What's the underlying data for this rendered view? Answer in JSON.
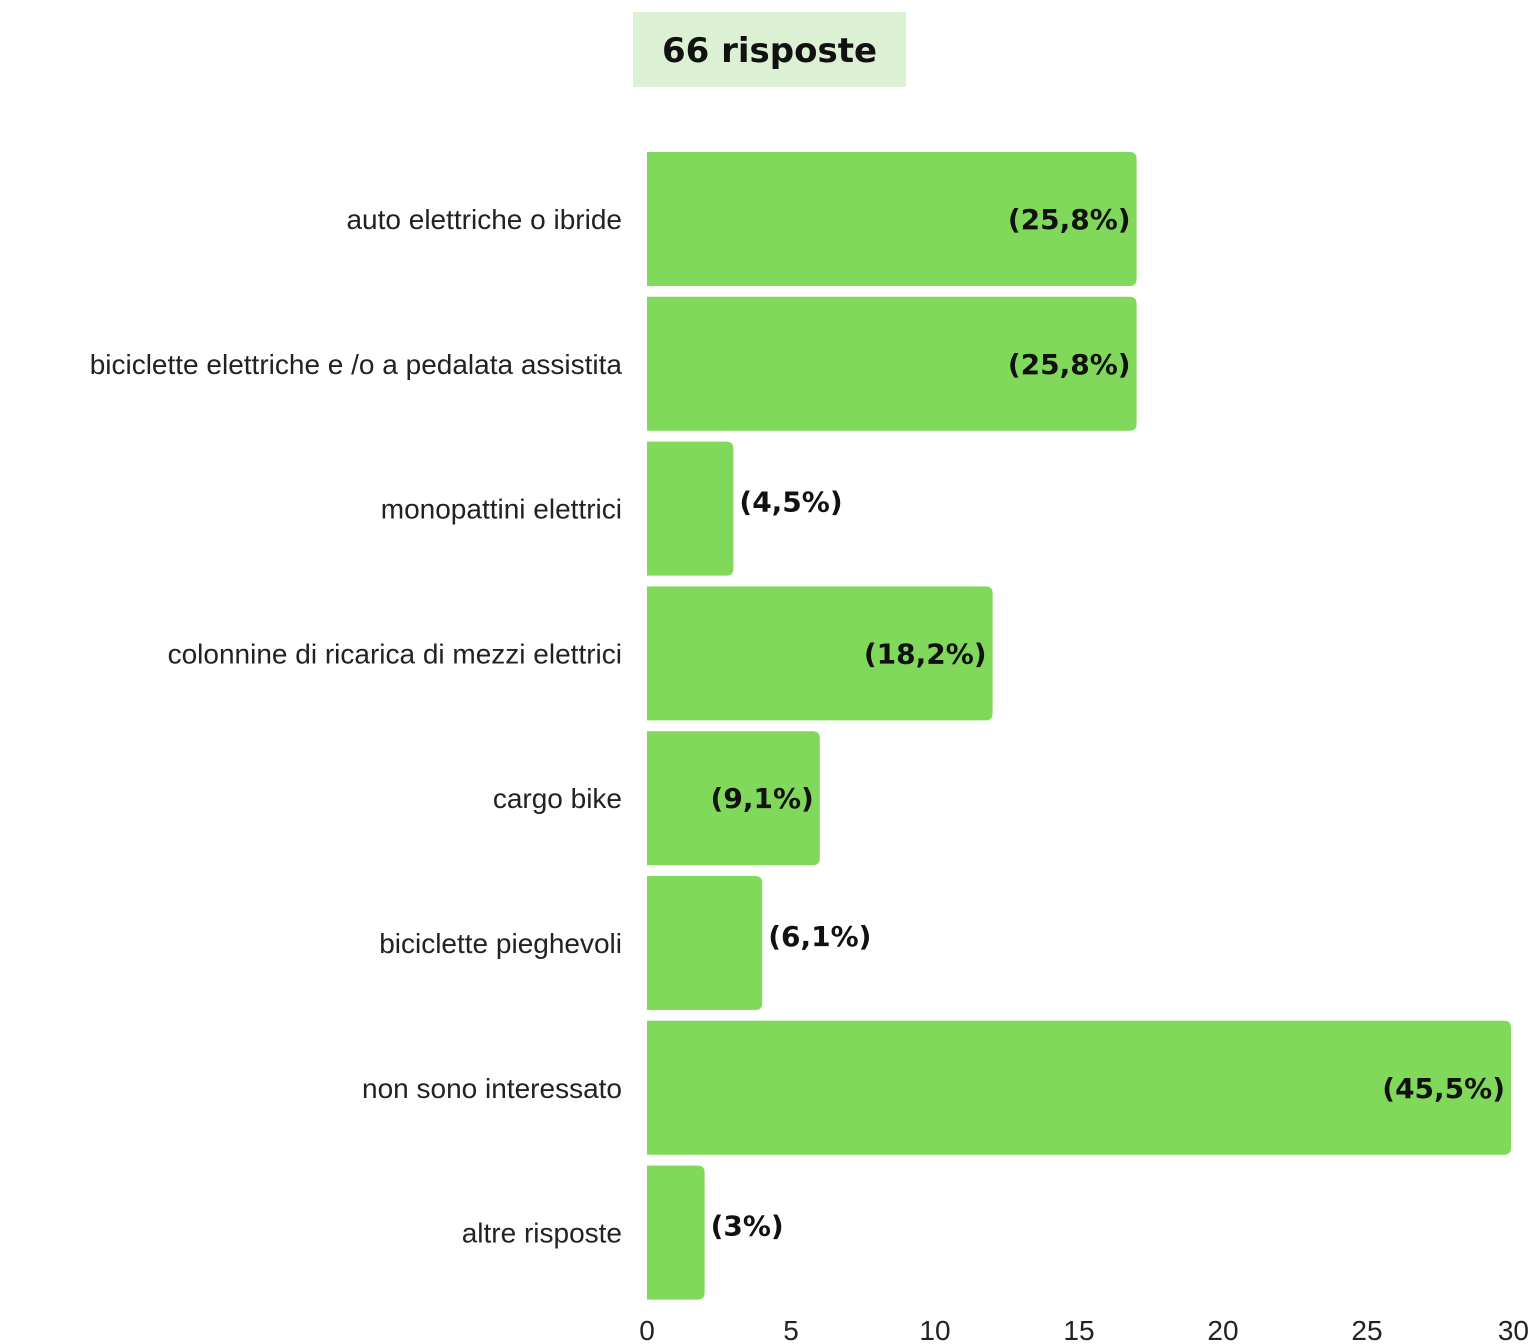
{
  "chart_data": {
    "type": "bar",
    "orientation": "horizontal",
    "title": "66 risposte",
    "categories": [
      "auto elettriche o ibride",
      "biciclette elettriche e /o a pedalata assistita",
      "monopattini elettrici",
      "colonnine di ricarica di mezzi elettrici",
      "cargo bike",
      "biciclette pieghevoli",
      "non sono interessato",
      "altre risposte"
    ],
    "values": [
      17,
      17,
      3,
      12,
      6,
      4,
      30,
      2
    ],
    "value_labels": [
      "(25,8%)",
      "(25,8%)",
      "(4,5%)",
      "(18,2%)",
      "(9,1%)",
      "(6,1%)",
      "(45,5%)",
      "(3%)"
    ],
    "xlim": [
      0,
      30
    ],
    "xticks": [
      "0",
      "5",
      "10",
      "15",
      "20",
      "25",
      "30"
    ],
    "xlabel": "",
    "ylabel": "",
    "grid": false,
    "colors": {
      "bar": "#80d95a",
      "title_bg": "#dcf0d3"
    }
  }
}
